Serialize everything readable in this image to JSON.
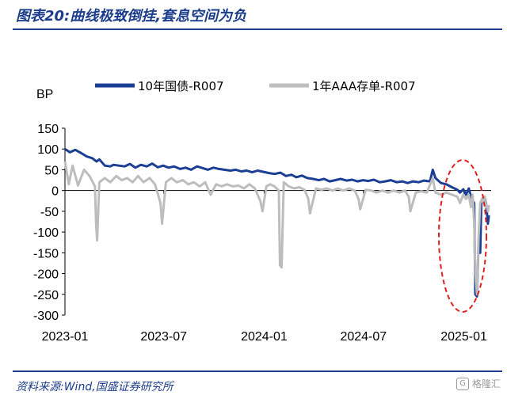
{
  "header": {
    "title": "图表20:曲线极致倒挂,套息空间为负"
  },
  "footer": {
    "source": "资料来源:Wind,国盛证券研究所",
    "watermark": "格隆汇",
    "watermark_glyph": "G"
  },
  "chart_data": {
    "type": "line",
    "ylabel": "BP",
    "ylim": [
      -300,
      150
    ],
    "yticks": [
      150,
      100,
      50,
      0,
      -50,
      -100,
      -150,
      -200,
      -250,
      -300
    ],
    "xlim": [
      "2023-01-01",
      "2025-02-20"
    ],
    "xticks": [
      "2023-01",
      "2023-07",
      "2024-01",
      "2024-07",
      "2025-01"
    ],
    "legend_position": "top",
    "grid": false,
    "highlight_ellipse": {
      "color": "#e02020",
      "style": "dashed"
    },
    "series": [
      {
        "name": "10年国债-R007",
        "color": "#1b3f95",
        "points": [
          [
            "2023-01-01",
            100
          ],
          [
            "2023-01-10",
            92
          ],
          [
            "2023-01-20",
            98
          ],
          [
            "2023-01-31",
            90
          ],
          [
            "2023-02-10",
            82
          ],
          [
            "2023-02-20",
            78
          ],
          [
            "2023-02-28",
            70
          ],
          [
            "2023-03-05",
            75
          ],
          [
            "2023-03-15",
            60
          ],
          [
            "2023-03-25",
            58
          ],
          [
            "2023-03-31",
            62
          ],
          [
            "2023-04-10",
            60
          ],
          [
            "2023-04-20",
            58
          ],
          [
            "2023-04-30",
            64
          ],
          [
            "2023-05-10",
            55
          ],
          [
            "2023-05-20",
            62
          ],
          [
            "2023-05-31",
            58
          ],
          [
            "2023-06-10",
            65
          ],
          [
            "2023-06-20",
            56
          ],
          [
            "2023-06-30",
            60
          ],
          [
            "2023-07-10",
            55
          ],
          [
            "2023-07-20",
            58
          ],
          [
            "2023-07-31",
            52
          ],
          [
            "2023-08-10",
            55
          ],
          [
            "2023-08-20",
            50
          ],
          [
            "2023-08-31",
            58
          ],
          [
            "2023-09-10",
            54
          ],
          [
            "2023-09-20",
            50
          ],
          [
            "2023-09-30",
            55
          ],
          [
            "2023-10-10",
            52
          ],
          [
            "2023-10-20",
            50
          ],
          [
            "2023-10-31",
            48
          ],
          [
            "2023-11-10",
            50
          ],
          [
            "2023-11-20",
            46
          ],
          [
            "2023-11-30",
            48
          ],
          [
            "2023-12-10",
            44
          ],
          [
            "2023-12-20",
            48
          ],
          [
            "2023-12-31",
            45
          ],
          [
            "2024-01-10",
            42
          ],
          [
            "2024-01-20",
            40
          ],
          [
            "2024-01-31",
            43
          ],
          [
            "2024-02-10",
            35
          ],
          [
            "2024-02-20",
            38
          ],
          [
            "2024-02-29",
            32
          ],
          [
            "2024-03-10",
            36
          ],
          [
            "2024-03-20",
            30
          ],
          [
            "2024-03-31",
            28
          ],
          [
            "2024-04-10",
            25
          ],
          [
            "2024-04-20",
            28
          ],
          [
            "2024-04-30",
            22
          ],
          [
            "2024-05-10",
            25
          ],
          [
            "2024-05-20",
            28
          ],
          [
            "2024-05-31",
            24
          ],
          [
            "2024-06-10",
            26
          ],
          [
            "2024-06-20",
            22
          ],
          [
            "2024-06-30",
            25
          ],
          [
            "2024-07-10",
            23
          ],
          [
            "2024-07-20",
            26
          ],
          [
            "2024-07-31",
            20
          ],
          [
            "2024-08-10",
            22
          ],
          [
            "2024-08-20",
            25
          ],
          [
            "2024-08-31",
            20
          ],
          [
            "2024-09-10",
            22
          ],
          [
            "2024-09-20",
            18
          ],
          [
            "2024-09-30",
            22
          ],
          [
            "2024-10-10",
            20
          ],
          [
            "2024-10-20",
            24
          ],
          [
            "2024-10-31",
            22
          ],
          [
            "2024-11-05",
            50
          ],
          [
            "2024-11-10",
            30
          ],
          [
            "2024-11-20",
            18
          ],
          [
            "2024-11-30",
            15
          ],
          [
            "2024-12-10",
            8
          ],
          [
            "2024-12-20",
            2
          ],
          [
            "2024-12-25",
            -5
          ],
          [
            "2024-12-31",
            3
          ],
          [
            "2025-01-05",
            -10
          ],
          [
            "2025-01-10",
            5
          ],
          [
            "2025-01-15",
            -20
          ],
          [
            "2025-01-20",
            -30
          ],
          [
            "2025-01-22",
            -250
          ],
          [
            "2025-01-25",
            -255
          ],
          [
            "2025-01-28",
            -120
          ],
          [
            "2025-01-31",
            -150
          ],
          [
            "2025-02-02",
            -30
          ],
          [
            "2025-02-05",
            -20
          ],
          [
            "2025-02-08",
            -15
          ],
          [
            "2025-02-10",
            -30
          ],
          [
            "2025-02-12",
            -50
          ],
          [
            "2025-02-14",
            -80
          ],
          [
            "2025-02-16",
            -60
          ]
        ]
      },
      {
        "name": "1年AAA存单-R007",
        "color": "#bdbdbd",
        "points": [
          [
            "2023-01-01",
            70
          ],
          [
            "2023-01-08",
            15
          ],
          [
            "2023-01-15",
            60
          ],
          [
            "2023-01-25",
            12
          ],
          [
            "2023-02-05",
            50
          ],
          [
            "2023-02-15",
            35
          ],
          [
            "2023-02-25",
            10
          ],
          [
            "2023-02-27",
            -80
          ],
          [
            "2023-03-01",
            -120
          ],
          [
            "2023-03-05",
            20
          ],
          [
            "2023-03-15",
            30
          ],
          [
            "2023-03-25",
            20
          ],
          [
            "2023-04-05",
            35
          ],
          [
            "2023-04-15",
            25
          ],
          [
            "2023-04-25",
            30
          ],
          [
            "2023-05-05",
            20
          ],
          [
            "2023-05-15",
            35
          ],
          [
            "2023-05-25",
            20
          ],
          [
            "2023-06-05",
            30
          ],
          [
            "2023-06-15",
            15
          ],
          [
            "2023-06-25",
            -30
          ],
          [
            "2023-06-28",
            -80
          ],
          [
            "2023-07-05",
            20
          ],
          [
            "2023-07-15",
            30
          ],
          [
            "2023-07-25",
            20
          ],
          [
            "2023-08-05",
            25
          ],
          [
            "2023-08-15",
            15
          ],
          [
            "2023-08-25",
            20
          ],
          [
            "2023-09-05",
            10
          ],
          [
            "2023-09-15",
            20
          ],
          [
            "2023-09-25",
            -10
          ],
          [
            "2023-10-05",
            15
          ],
          [
            "2023-10-15",
            10
          ],
          [
            "2023-10-25",
            15
          ],
          [
            "2023-11-05",
            10
          ],
          [
            "2023-11-15",
            12
          ],
          [
            "2023-11-25",
            5
          ],
          [
            "2023-12-05",
            15
          ],
          [
            "2023-12-15",
            5
          ],
          [
            "2023-12-25",
            -25
          ],
          [
            "2023-12-29",
            -50
          ],
          [
            "2024-01-05",
            10
          ],
          [
            "2024-01-12",
            15
          ],
          [
            "2024-01-20",
            10
          ],
          [
            "2024-01-28",
            0
          ],
          [
            "2024-01-30",
            -180
          ],
          [
            "2024-02-02",
            -185
          ],
          [
            "2024-02-06",
            20
          ],
          [
            "2024-02-15",
            10
          ],
          [
            "2024-02-25",
            5
          ],
          [
            "2024-03-05",
            8
          ],
          [
            "2024-03-15",
            2
          ],
          [
            "2024-03-22",
            -20
          ],
          [
            "2024-03-25",
            -55
          ],
          [
            "2024-04-05",
            5
          ],
          [
            "2024-04-15",
            2
          ],
          [
            "2024-04-25",
            5
          ],
          [
            "2024-05-05",
            0
          ],
          [
            "2024-05-15",
            5
          ],
          [
            "2024-05-25",
            0
          ],
          [
            "2024-06-05",
            5
          ],
          [
            "2024-06-15",
            0
          ],
          [
            "2024-06-22",
            -20
          ],
          [
            "2024-06-25",
            -45
          ],
          [
            "2024-07-05",
            2
          ],
          [
            "2024-07-15",
            0
          ],
          [
            "2024-07-25",
            -5
          ],
          [
            "2024-08-05",
            0
          ],
          [
            "2024-08-15",
            -5
          ],
          [
            "2024-08-25",
            0
          ],
          [
            "2024-09-05",
            -5
          ],
          [
            "2024-09-15",
            0
          ],
          [
            "2024-09-22",
            -15
          ],
          [
            "2024-09-25",
            -50
          ],
          [
            "2024-10-05",
            -5
          ],
          [
            "2024-10-15",
            -2
          ],
          [
            "2024-10-25",
            -5
          ],
          [
            "2024-11-05",
            30
          ],
          [
            "2024-11-10",
            -5
          ],
          [
            "2024-11-20",
            -10
          ],
          [
            "2024-11-30",
            -5
          ],
          [
            "2024-12-10",
            -10
          ],
          [
            "2024-12-20",
            -15
          ],
          [
            "2024-12-25",
            -30
          ],
          [
            "2024-12-31",
            -10
          ],
          [
            "2025-01-05",
            -20
          ],
          [
            "2025-01-10",
            -10
          ],
          [
            "2025-01-14",
            -40
          ],
          [
            "2025-01-17",
            -10
          ],
          [
            "2025-01-20",
            -80
          ],
          [
            "2025-01-22",
            -200
          ],
          [
            "2025-01-25",
            -250
          ],
          [
            "2025-01-28",
            -110
          ],
          [
            "2025-01-31",
            -30
          ],
          [
            "2025-02-03",
            -20
          ],
          [
            "2025-02-06",
            -30
          ],
          [
            "2025-02-08",
            -15
          ],
          [
            "2025-02-10",
            -40
          ],
          [
            "2025-02-12",
            -35
          ],
          [
            "2025-02-14",
            -50
          ],
          [
            "2025-02-16",
            -35
          ]
        ]
      }
    ]
  }
}
